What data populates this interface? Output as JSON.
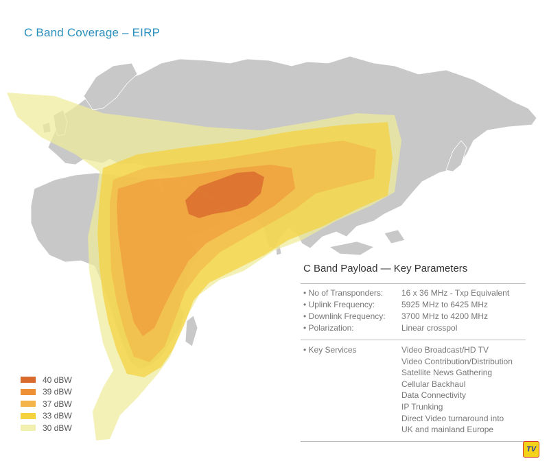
{
  "title": "C Band Coverage – EIRP",
  "legend": [
    {
      "label": "40 dBW",
      "color": "#d96a2e"
    },
    {
      "label": "39 dBW",
      "color": "#ee9136"
    },
    {
      "label": "37 dBW",
      "color": "#f4b44a"
    },
    {
      "label": "33 dBW",
      "color": "#f4d33e"
    },
    {
      "label": "30 dBW",
      "color": "#f2f0b0"
    }
  ],
  "colors": {
    "land": "#c8c8c8",
    "ocean": "#ffffff",
    "borders": "#ffffff",
    "title": "#2a8fbd"
  },
  "panel": {
    "title": "C Band Payload — Key Parameters",
    "params": [
      {
        "label": "• No of Transponders:",
        "value": "16 x 36 MHz - Txp Equivalent"
      },
      {
        "label": "• Uplink Frequency:",
        "value": "5925 MHz to 6425 MHz"
      },
      {
        "label": "• Downlink Frequency:",
        "value": "3700 MHz to 4200 MHz"
      },
      {
        "label": "• Polarization:",
        "value": "Linear crosspol"
      }
    ],
    "services_label": "• Key Services",
    "services": [
      "Video Broadcast/HD TV",
      "Video Contribution/Distribution",
      "Satellite News Gathering",
      "Cellular Backhaul",
      "Data Connectivity",
      "IP Trunking",
      "Direct Video turnaround into",
      "UK and mainland Europe"
    ]
  },
  "logo_text": "TV"
}
